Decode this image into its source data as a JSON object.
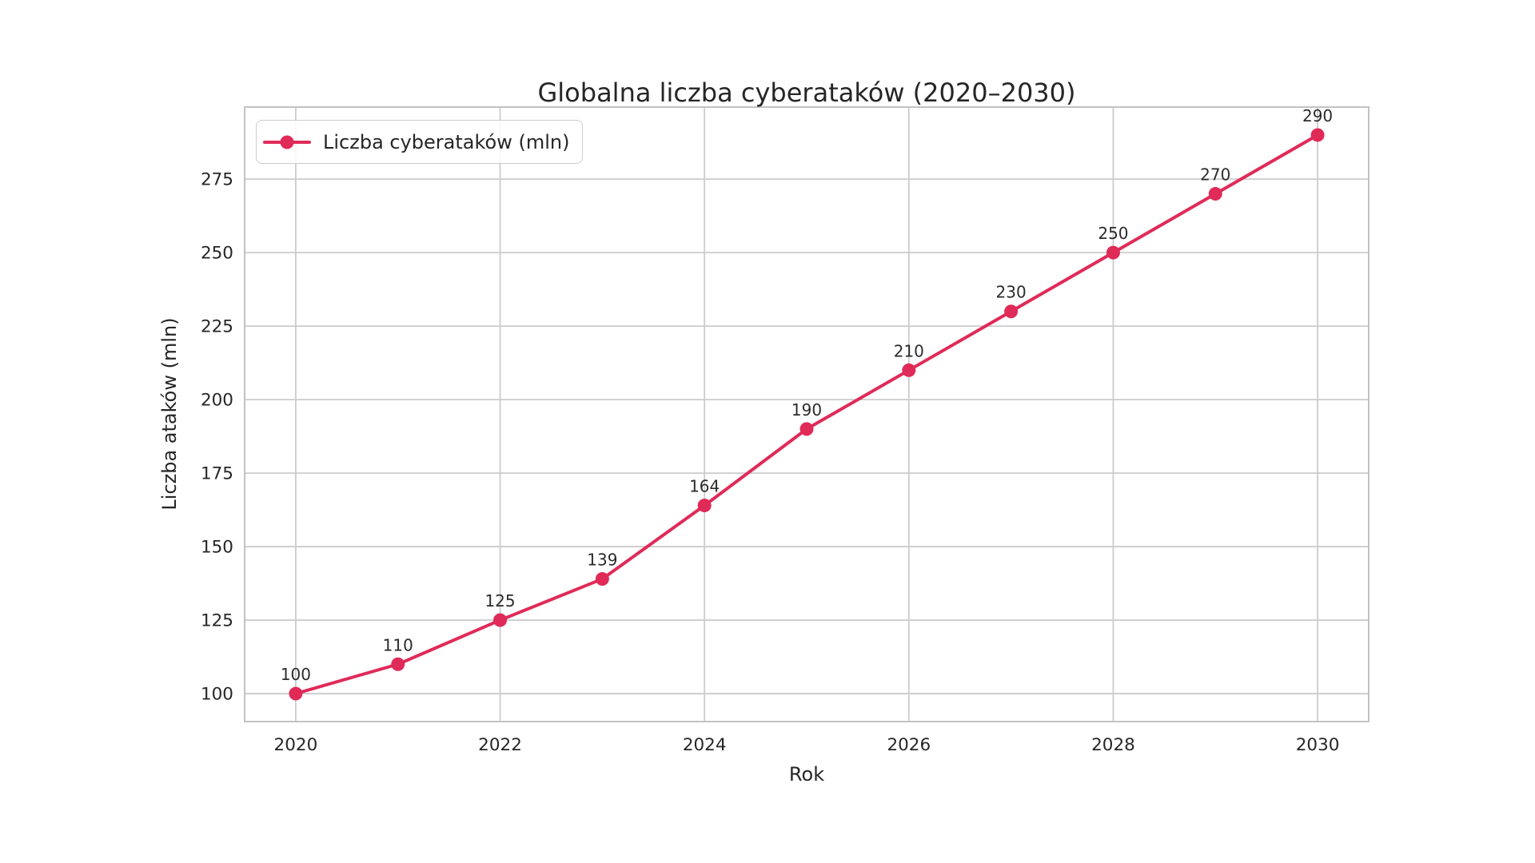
{
  "figure": {
    "background": "#ffffff"
  },
  "colors": {
    "accent": "#e02a58",
    "grid": "#cccccc",
    "spine": "#c2c2c2",
    "text": "#262626",
    "point_label_text": "#2b2b2b"
  },
  "chart_data": {
    "type": "line",
    "title": "Globalna liczba cyberataków (2020–2030)",
    "xlabel": "Rok",
    "ylabel": "Liczba ataków (mln)",
    "grid": true,
    "legend_position": "upper left",
    "x": [
      2020,
      2021,
      2022,
      2023,
      2024,
      2025,
      2026,
      2027,
      2028,
      2029,
      2030
    ],
    "series": [
      {
        "name": "Liczba cyberataków (mln)",
        "values": [
          100,
          110,
          125,
          139,
          164,
          190,
          210,
          230,
          250,
          270,
          290
        ],
        "color": "#e02a58",
        "marker": "circle",
        "point_labels_visible": true
      }
    ],
    "xticks": [
      2020,
      2022,
      2024,
      2026,
      2028,
      2030
    ],
    "yticks": [
      100,
      125,
      150,
      175,
      200,
      225,
      250,
      275
    ],
    "xlim": [
      2019.5,
      2030.5
    ],
    "ylim": [
      90.5,
      299.5
    ]
  }
}
